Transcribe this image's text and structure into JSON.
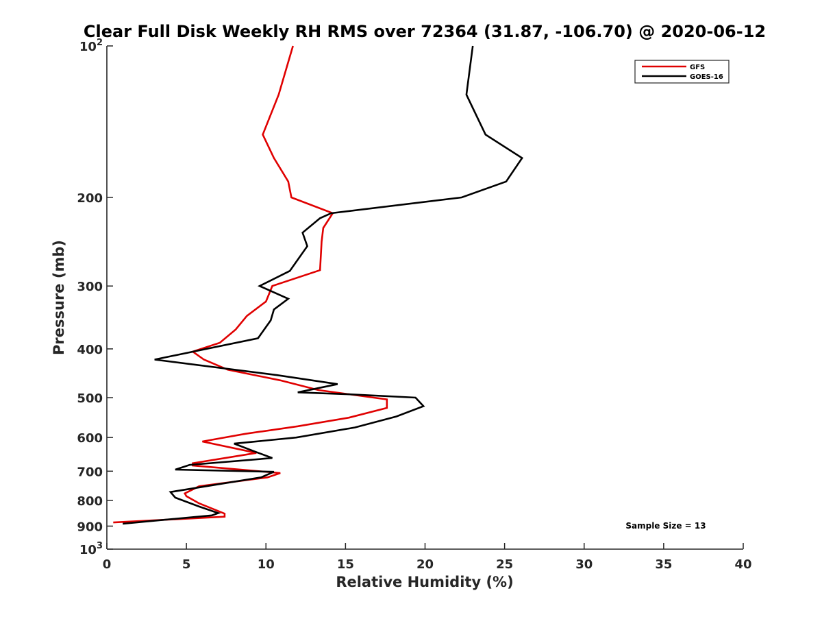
{
  "chart_data": {
    "type": "line",
    "title": "Clear Full Disk Weekly RH RMS over 72364 (31.87, -106.70) @ 2020-06-12",
    "xlabel": "Relative Humidity (%)",
    "ylabel": "Pressure (mb)",
    "xlim": [
      0,
      40
    ],
    "ylim": [
      100,
      1000
    ],
    "y_scale": "log",
    "y_reversed": true,
    "grid": false,
    "legend_position": "top-right",
    "x_ticks": [
      0,
      5,
      10,
      15,
      20,
      25,
      30,
      35,
      40
    ],
    "x_tick_labels": [
      "0",
      "5",
      "10",
      "15",
      "20",
      "25",
      "30",
      "35",
      "40"
    ],
    "y_ticks": [
      100,
      200,
      300,
      400,
      500,
      600,
      700,
      800,
      900,
      1000
    ],
    "y_tick_labels": [
      {
        "base": "10",
        "exp": "2"
      },
      {
        "base": "200",
        "exp": ""
      },
      {
        "base": "300",
        "exp": ""
      },
      {
        "base": "400",
        "exp": ""
      },
      {
        "base": "500",
        "exp": ""
      },
      {
        "base": "600",
        "exp": ""
      },
      {
        "base": "700",
        "exp": ""
      },
      {
        "base": "800",
        "exp": ""
      },
      {
        "base": "900",
        "exp": ""
      },
      {
        "base": "10",
        "exp": "3"
      }
    ],
    "series": [
      {
        "name": "GFS",
        "color": "#e00000",
        "points": [
          [
            11.7,
            100
          ],
          [
            10.8,
            125
          ],
          [
            9.8,
            150
          ],
          [
            10.5,
            167
          ],
          [
            11.4,
            186
          ],
          [
            11.6,
            200
          ],
          [
            14.2,
            215
          ],
          [
            13.6,
            230
          ],
          [
            13.5,
            245
          ],
          [
            13.4,
            279
          ],
          [
            10.4,
            300
          ],
          [
            10.0,
            322
          ],
          [
            8.8,
            344
          ],
          [
            8.1,
            366
          ],
          [
            7.1,
            389
          ],
          [
            5.4,
            405
          ],
          [
            6.1,
            420
          ],
          [
            7.6,
            440
          ],
          [
            10.9,
            462
          ],
          [
            13.3,
            483
          ],
          [
            17.6,
            504
          ],
          [
            17.6,
            524
          ],
          [
            15.2,
            548
          ],
          [
            12.0,
            570
          ],
          [
            8.7,
            590
          ],
          [
            6.0,
            611
          ],
          [
            9.4,
            644
          ],
          [
            5.4,
            675
          ],
          [
            5.4,
            682
          ],
          [
            10.9,
            706
          ],
          [
            10.1,
            720
          ],
          [
            5.8,
            750
          ],
          [
            4.9,
            775
          ],
          [
            5.0,
            785
          ],
          [
            5.8,
            811
          ],
          [
            7.4,
            850
          ],
          [
            7.4,
            862
          ],
          [
            0.4,
            885
          ]
        ]
      },
      {
        "name": "GOES-16",
        "color": "#000000",
        "points": [
          [
            23.0,
            100
          ],
          [
            22.6,
            125
          ],
          [
            23.8,
            150
          ],
          [
            26.1,
            167
          ],
          [
            25.1,
            186
          ],
          [
            22.3,
            200
          ],
          [
            14.1,
            215
          ],
          [
            13.4,
            220
          ],
          [
            12.3,
            235
          ],
          [
            12.6,
            250
          ],
          [
            11.5,
            280
          ],
          [
            9.6,
            300
          ],
          [
            11.4,
            318
          ],
          [
            10.5,
            334
          ],
          [
            10.3,
            351
          ],
          [
            9.5,
            381
          ],
          [
            3.0,
            420
          ],
          [
            10.7,
            451
          ],
          [
            14.5,
            470
          ],
          [
            12.0,
            488
          ],
          [
            15.0,
            492
          ],
          [
            19.4,
            500
          ],
          [
            19.9,
            520
          ],
          [
            18.2,
            545
          ],
          [
            15.6,
            573
          ],
          [
            11.9,
            600
          ],
          [
            8.0,
            617
          ],
          [
            9.3,
            640
          ],
          [
            10.4,
            659
          ],
          [
            5.2,
            680
          ],
          [
            4.3,
            695
          ],
          [
            10.5,
            702
          ],
          [
            9.7,
            720
          ],
          [
            4.0,
            770
          ],
          [
            4.3,
            790
          ],
          [
            5.8,
            823
          ],
          [
            7.0,
            848
          ],
          [
            6.6,
            857
          ],
          [
            1.0,
            890
          ]
        ]
      }
    ],
    "annotations": [
      "Sample Size = 13"
    ]
  },
  "legend": {
    "items": [
      {
        "label": "GFS",
        "color": "#e00000"
      },
      {
        "label": "GOES-16",
        "color": "#000000"
      }
    ]
  }
}
